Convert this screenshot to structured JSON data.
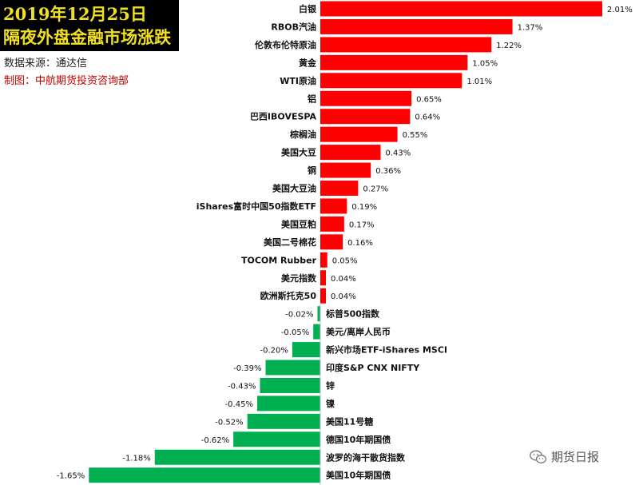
{
  "header": {
    "title_line1": "2019年12月25日",
    "title_line2": "隔夜外盘金融市场涨跌",
    "source": "数据来源：通达信",
    "maker": "制图：中航期货投资咨询部"
  },
  "watermark": {
    "text": "期货日报",
    "icon": "wechat-icon"
  },
  "colors": {
    "positive": "#ff0000",
    "negative": "#00b050",
    "title_bg": "#000000",
    "title_text": "#f0e020"
  },
  "chart_data": {
    "type": "bar",
    "orientation": "horizontal",
    "unit": "%",
    "categories": [
      "白银",
      "RBOB汽油",
      "伦敦布伦特原油",
      "黄金",
      "WTI原油",
      "铝",
      "巴西IBOVESPA",
      "棕榈油",
      "美国大豆",
      "铜",
      "美国大豆油",
      "iShares富时中国50指数ETF",
      "美国豆粕",
      "美国二号棉花",
      "TOCOM Rubber",
      "美元指数",
      "欧洲斯托克50",
      "标普500指数",
      "美元/离岸人民币",
      "新兴市场ETF-iShares MSCI",
      "印度S&P CNX NIFTY",
      "锌",
      "镍",
      "美国11号糖",
      "德国10年期国债",
      "波罗的海干散货指数",
      "美国10年期国债"
    ],
    "values": [
      2.01,
      1.37,
      1.22,
      1.05,
      1.01,
      0.65,
      0.64,
      0.55,
      0.43,
      0.36,
      0.27,
      0.19,
      0.17,
      0.16,
      0.05,
      0.04,
      0.04,
      -0.02,
      -0.05,
      -0.2,
      -0.39,
      -0.43,
      -0.45,
      -0.52,
      -0.62,
      -1.18,
      -1.65
    ],
    "value_labels": [
      "2.01%",
      "1.37%",
      "1.22%",
      "1.05%",
      "1.01%",
      "0.65%",
      "0.64%",
      "0.55%",
      "0.43%",
      "0.36%",
      "0.27%",
      "0.19%",
      "0.17%",
      "0.16%",
      "0.05%",
      "0.04%",
      "0.04%",
      "-0.02%",
      "-0.05%",
      "-0.20%",
      "-0.39%",
      "-0.43%",
      "-0.45%",
      "-0.52%",
      "-0.62%",
      "-1.18%",
      "-1.65%"
    ],
    "xlim": [
      -1.65,
      2.01
    ],
    "grid": false,
    "legend": "none"
  }
}
